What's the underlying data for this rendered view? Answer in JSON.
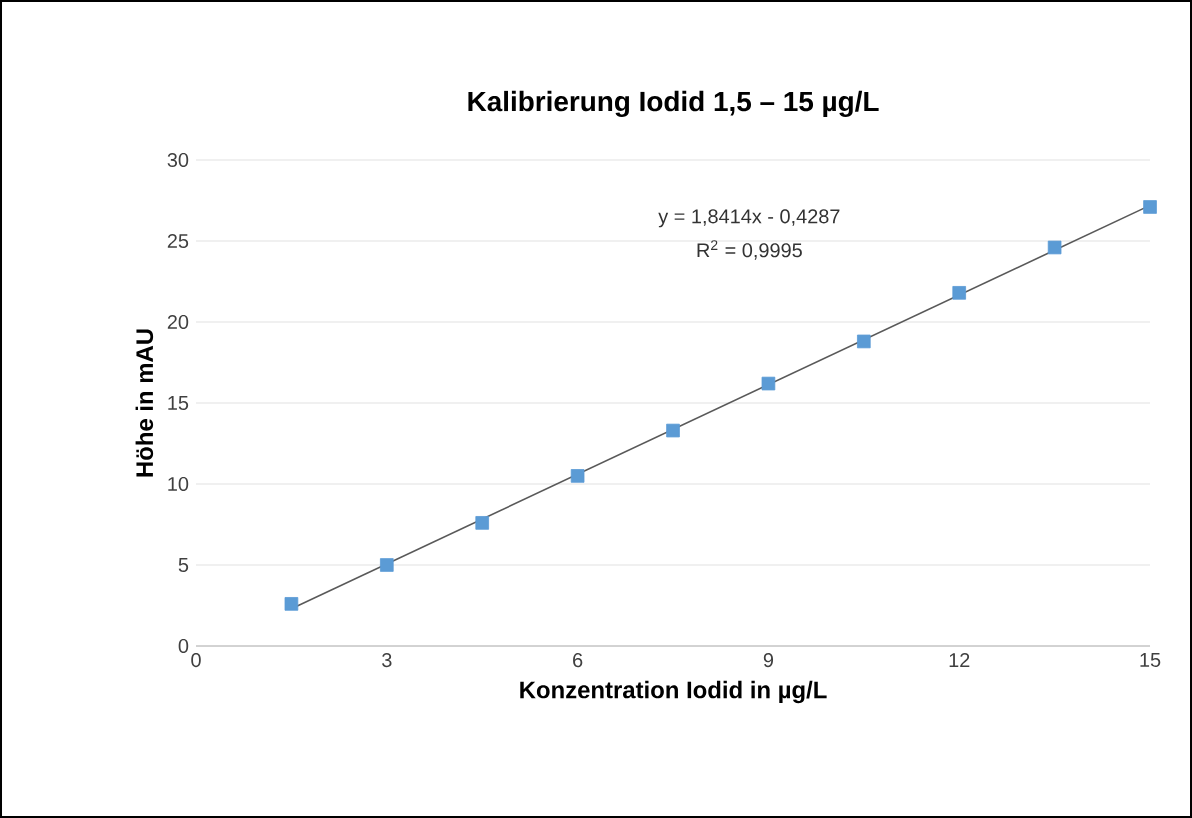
{
  "chart_data": {
    "type": "scatter",
    "title": "Kalibrierung Iodid 1,5 – 15 µg/L",
    "xlabel": "Konzentration Iodid in µg/L",
    "ylabel": "Höhe in mAU",
    "series": [
      {
        "type": "scatter",
        "color": "#5b9bd5",
        "marker": "square",
        "x": [
          1.5,
          3,
          4.5,
          6,
          7.5,
          9,
          10.5,
          12,
          13.5,
          15
        ],
        "values": [
          2.6,
          5.0,
          7.6,
          10.5,
          13.3,
          16.2,
          18.8,
          21.8,
          24.6,
          27.1
        ]
      },
      {
        "type": "line",
        "color": "#595959",
        "marker": "none",
        "line_style": "solid",
        "x": [
          1.5,
          15
        ],
        "values": [
          2.3,
          27.2
        ]
      }
    ],
    "annotations": [
      "y = 1,8414x - 0,4287",
      "R$^{2}$ = 0,9995"
    ],
    "xlim": [
      0,
      15
    ],
    "xticks": [
      0,
      3,
      6,
      9,
      12,
      15
    ],
    "ylim": [
      0,
      30
    ],
    "yticks": [
      0,
      5,
      10,
      15,
      20,
      25,
      30
    ],
    "grid": "y"
  }
}
